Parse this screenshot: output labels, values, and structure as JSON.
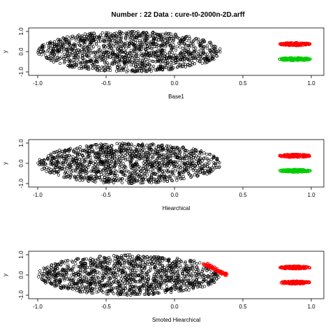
{
  "title": "Number : 22    Data : cure-t0-2000n-2D.arff",
  "colors": {
    "black": "#000000",
    "red": "#ff0000",
    "green": "#00cc00"
  },
  "chart_data": [
    {
      "type": "scatter",
      "xlabel": "Base1",
      "ylabel": "y",
      "xlim": [
        -1.0,
        1.0
      ],
      "ylim": [
        -1.0,
        1.0
      ],
      "x_ticks": [
        "-1.0",
        "-0.5",
        "0.0",
        "0.5",
        "1.0"
      ],
      "y_ticks": [
        "-1.0",
        "0.0",
        "1.0"
      ],
      "series": [
        {
          "color": "#000000",
          "shape": "ellipse",
          "center": [
            -0.33,
            0.0
          ],
          "radius": [
            0.67,
            1.0
          ]
        },
        {
          "color": "#ff0000",
          "shape": "ellipse",
          "center": [
            0.88,
            0.37
          ],
          "radius": [
            0.12,
            0.12
          ]
        },
        {
          "color": "#00cc00",
          "shape": "ellipse",
          "center": [
            0.88,
            -0.37
          ],
          "radius": [
            0.12,
            0.12
          ]
        }
      ]
    },
    {
      "type": "scatter",
      "xlabel": "Hiearchical",
      "ylabel": "y",
      "xlim": [
        -1.0,
        1.0
      ],
      "ylim": [
        -1.0,
        1.0
      ],
      "x_ticks": [
        "-1.0",
        "-0.5",
        "0.0",
        "0.5",
        "1.0"
      ],
      "y_ticks": [
        "-1.0",
        "0.0",
        "1.0"
      ],
      "series": [
        {
          "color": "#000000",
          "shape": "ellipse",
          "center": [
            -0.33,
            0.0
          ],
          "radius": [
            0.67,
            1.0
          ]
        },
        {
          "color": "#ff0000",
          "shape": "ellipse",
          "center": [
            0.88,
            0.37
          ],
          "radius": [
            0.12,
            0.12
          ]
        },
        {
          "color": "#00cc00",
          "shape": "ellipse",
          "center": [
            0.88,
            -0.37
          ],
          "radius": [
            0.12,
            0.12
          ]
        }
      ]
    },
    {
      "type": "scatter",
      "xlabel": "Smoted Hiearchical",
      "ylabel": "y",
      "xlim": [
        -1.0,
        1.0
      ],
      "ylim": [
        -1.0,
        1.0
      ],
      "x_ticks": [
        "-1.0",
        "-0.5",
        "0.0",
        "0.5",
        "1.0"
      ],
      "y_ticks": [
        "-1.0",
        "0.0",
        "1.0"
      ],
      "series": [
        {
          "color": "#000000",
          "shape": "ellipse",
          "center": [
            -0.33,
            0.0
          ],
          "radius": [
            0.67,
            1.0
          ]
        },
        {
          "color": "#ff0000",
          "shape": "ellipse",
          "center": [
            0.88,
            0.37
          ],
          "radius": [
            0.12,
            0.12
          ]
        },
        {
          "color": "#ff0000",
          "shape": "ellipse",
          "center": [
            0.88,
            -0.37
          ],
          "radius": [
            0.12,
            0.12
          ]
        },
        {
          "color": "#ff0000",
          "shape": "band",
          "from": [
            0.22,
            0.55
          ],
          "to": [
            0.38,
            0.0
          ]
        }
      ]
    }
  ]
}
